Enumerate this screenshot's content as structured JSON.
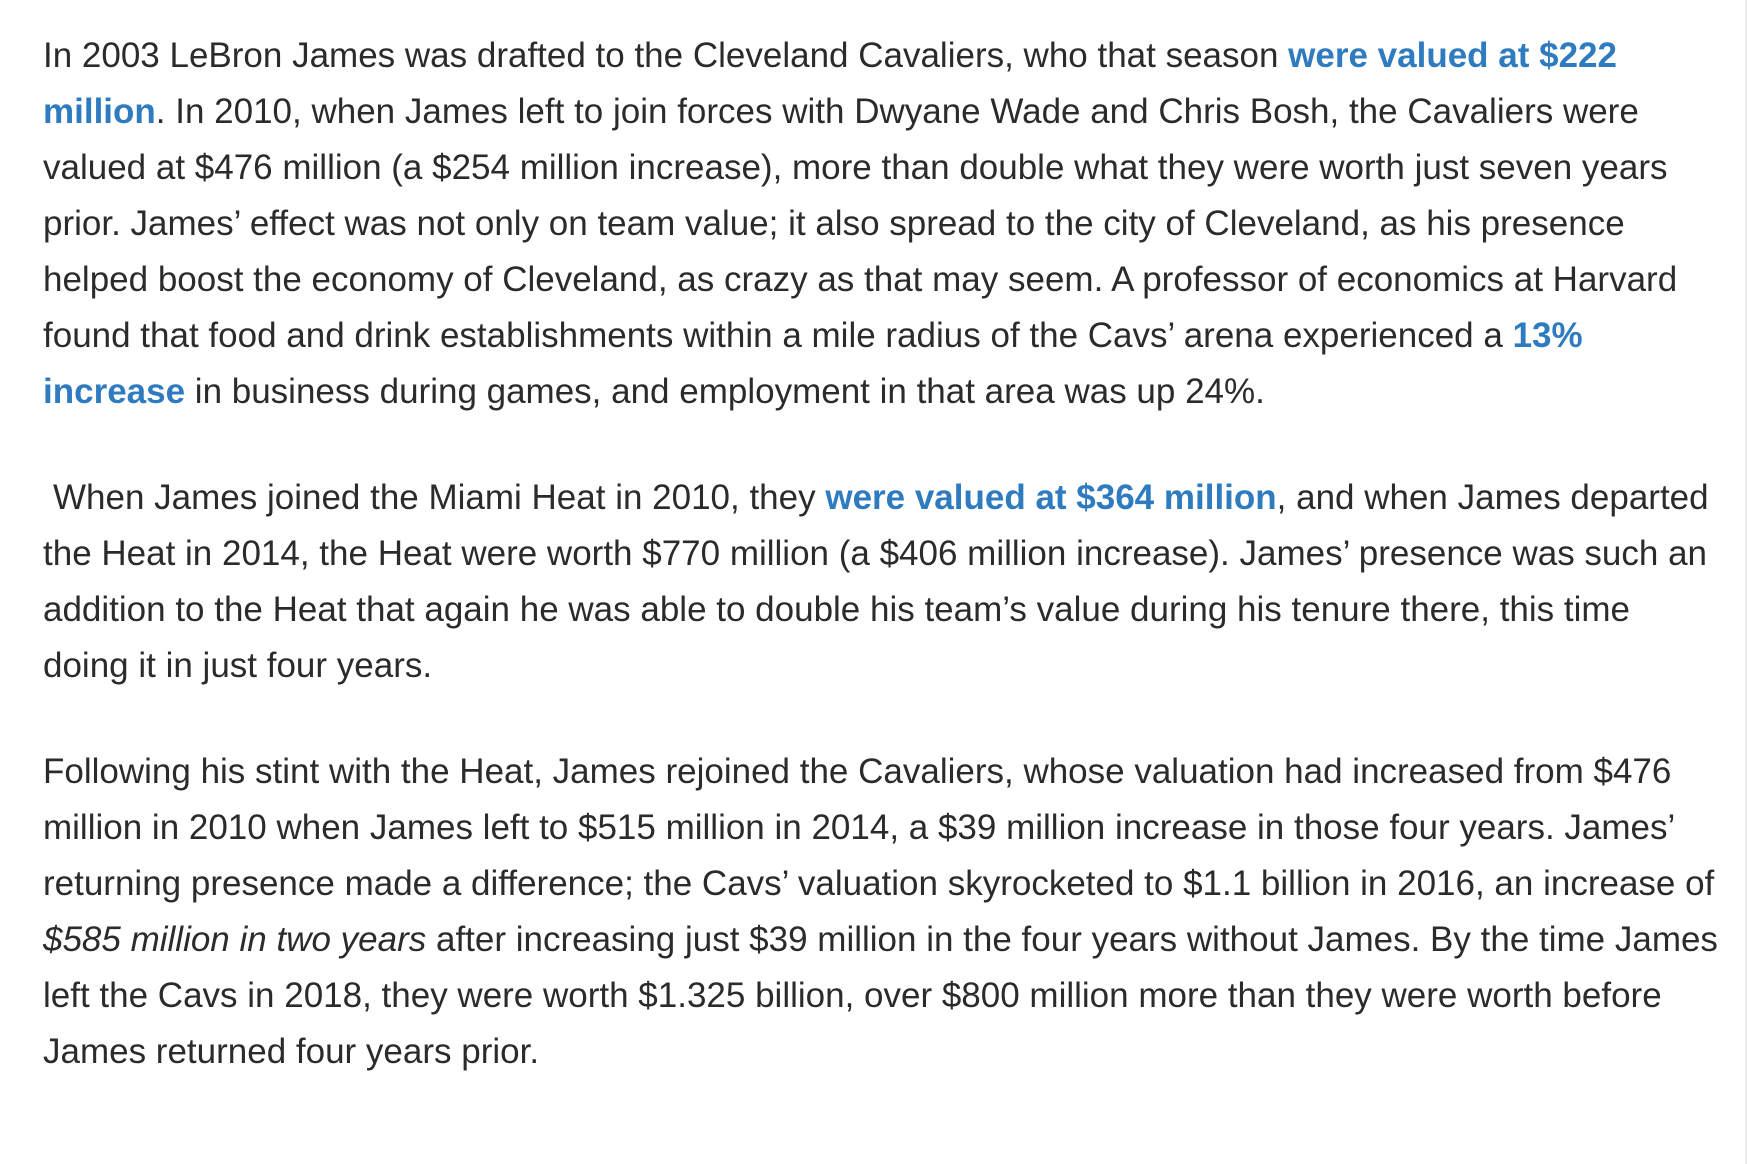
{
  "article": {
    "paragraphs": [
      {
        "segments": [
          {
            "type": "text",
            "text": "In 2003 LeBron James was drafted to the Cleveland Cavaliers, who that season "
          },
          {
            "type": "link",
            "text": "were valued at $222 million"
          },
          {
            "type": "text",
            "text": ". In 2010, when James left to join forces with Dwyane Wade and Chris Bosh, the Cavaliers were valued at $476 million (a $254 million increase), more than double what they were worth just seven years prior. James’ effect was not only on team value; it also spread to the city of Cleveland, as his presence helped boost the economy of Cleveland, as crazy as that may seem. A professor of economics at Harvard found that food and drink establishments within a mile radius of the Cavs’ arena experienced a "
          },
          {
            "type": "link",
            "text": "13% increase"
          },
          {
            "type": "text",
            "text": " in business during games, and employment in that area was up 24%."
          }
        ]
      },
      {
        "segments": [
          {
            "type": "text",
            "text": "When James joined the Miami Heat in 2010, they "
          },
          {
            "type": "link",
            "text": "were valued at $364 million"
          },
          {
            "type": "text",
            "text": ", and when James departed the Heat in 2014, the Heat were worth $770 million (a $406 million increase). James’ presence was such an addition to the Heat that again he was able to double his team’s value during his tenure there, this time doing it in just four years."
          }
        ]
      },
      {
        "segments": [
          {
            "type": "text",
            "text": "Following his stint with the Heat, James rejoined the Cavaliers, whose valuation had increased from $476 million in 2010 when James left to $515 million in 2014, a $39 million increase in those four years. James’ returning presence made a difference; the Cavs’ valuation skyrocketed to $1.1 billion in 2016, an increase of "
          },
          {
            "type": "italic",
            "text": "$585 million in two years"
          },
          {
            "type": "text",
            "text": " after increasing just $39 million in the four years without James. By the time James left the Cavs in 2018, they were worth $1.325 billion, over $800 million more than they were worth before James returned four years prior."
          }
        ]
      }
    ]
  },
  "colors": {
    "body_text": "#2b2b2b",
    "link": "#2f7bbf",
    "background": "#ffffff"
  }
}
